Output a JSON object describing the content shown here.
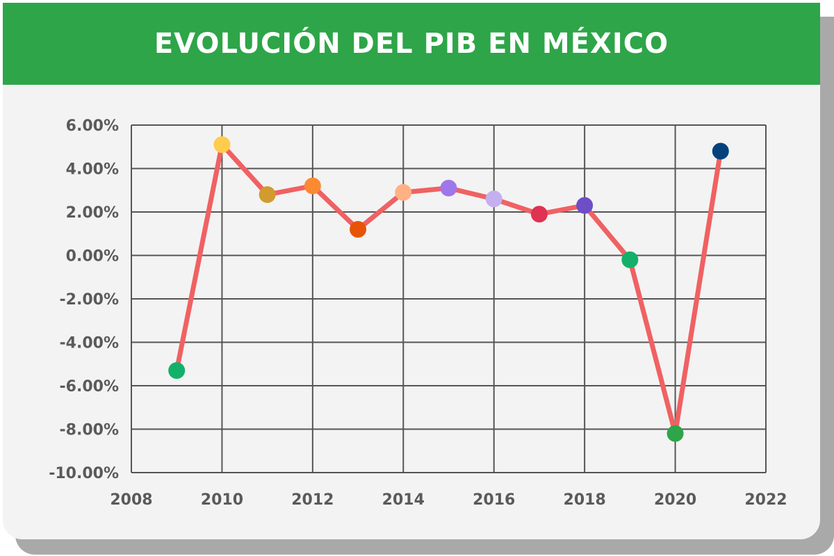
{
  "header": {
    "title": "EVOLUCIÓN DEL PIB EN MÉXICO"
  },
  "chart_data": {
    "type": "line",
    "title": "EVOLUCIÓN DEL PIB EN MÉXICO",
    "xlabel": "",
    "ylabel": "",
    "xlim": [
      2008,
      2022
    ],
    "ylim": [
      -10,
      6
    ],
    "x_ticks": [
      2008,
      2010,
      2012,
      2014,
      2016,
      2018,
      2020,
      2022
    ],
    "x_tick_labels": [
      "2008",
      "2010",
      "2012",
      "2014",
      "2016",
      "2018",
      "2020",
      "2022"
    ],
    "y_ticks": [
      6,
      4,
      2,
      0,
      -2,
      -4,
      -6,
      -8,
      -10
    ],
    "y_tick_labels": [
      "6.00%",
      "4.00%",
      "2.00%",
      "0.00%",
      "-2.00%",
      "-4.00%",
      "-6.00%",
      "-8.00%",
      "-10.00%"
    ],
    "grid": true,
    "line_color": "#f06162",
    "series": [
      {
        "x": [
          2009,
          2010,
          2011,
          2012,
          2013,
          2014,
          2015,
          2016,
          2017,
          2018,
          2019,
          2020,
          2021
        ],
        "y": [
          -5.3,
          5.1,
          2.8,
          3.2,
          1.2,
          2.9,
          3.1,
          2.6,
          1.9,
          2.3,
          -0.2,
          -8.2,
          4.8
        ],
        "marker_colors": [
          "#13b06a",
          "#ffcc4d",
          "#d19b2f",
          "#fb8a33",
          "#e75407",
          "#ffb183",
          "#9e78ea",
          "#c5b0ef",
          "#e03251",
          "#6d4ec6",
          "#13b06a",
          "#2ea548",
          "#05427c"
        ]
      }
    ]
  }
}
